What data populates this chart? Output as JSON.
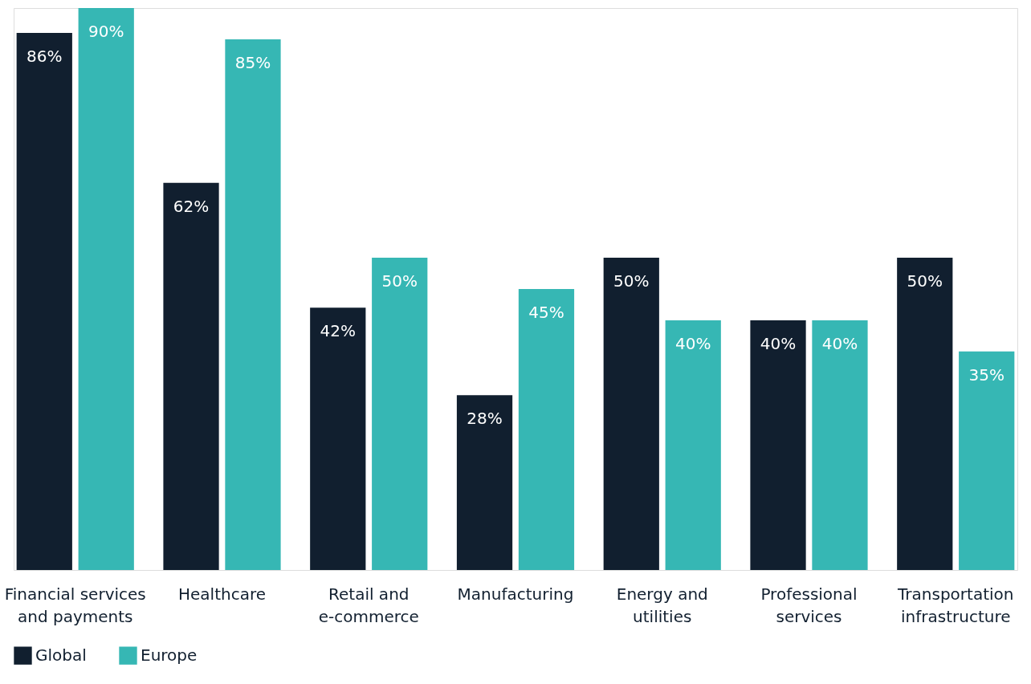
{
  "chart_data": {
    "type": "bar",
    "categories": [
      "Financial services and payments",
      "Healthcare",
      "Retail and e-commerce",
      "Manufacturing",
      "Energy and utilities",
      "Professional services",
      "Transportation infrastructure"
    ],
    "series": [
      {
        "name": "Global",
        "color": "#111f2f",
        "values": [
          86,
          62,
          42,
          28,
          50,
          40,
          50
        ],
        "value_labels": [
          "86%",
          "62%",
          "42%",
          "28%",
          "50%",
          "40%",
          "50%"
        ]
      },
      {
        "name": "Europe",
        "color": "#36b7b4",
        "values": [
          90,
          85,
          50,
          45,
          40,
          40,
          35
        ],
        "value_labels": [
          "90%",
          "85%",
          "50%",
          "45%",
          "40%",
          "40%",
          "35%"
        ]
      }
    ],
    "legend": "bottom left",
    "grid": false
  }
}
